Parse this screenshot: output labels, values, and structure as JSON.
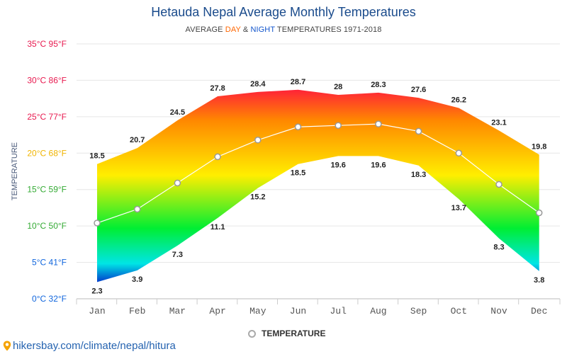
{
  "chart_data": {
    "type": "area",
    "title": "Hetauda Nepal Average Monthly Temperatures",
    "subtitle": {
      "prefix": "AVERAGE ",
      "day": "DAY",
      "amp": " & ",
      "night": "NIGHT",
      "suffix": " TEMPERATURES 1971-2018"
    },
    "ylabel": "TEMPERATURE",
    "categories": [
      "Jan",
      "Feb",
      "Mar",
      "Apr",
      "May",
      "Jun",
      "Jul",
      "Aug",
      "Sep",
      "Oct",
      "Nov",
      "Dec"
    ],
    "ylim": [
      0,
      35
    ],
    "y_ticks": [
      {
        "value": 35,
        "label": "35°C 95°F"
      },
      {
        "value": 30,
        "label": "30°C 86°F"
      },
      {
        "value": 25,
        "label": "25°C 77°F"
      },
      {
        "value": 20,
        "label": "20°C 68°F"
      },
      {
        "value": 15,
        "label": "15°C 59°F"
      },
      {
        "value": 10,
        "label": "10°C 50°F"
      },
      {
        "value": 5,
        "label": "5°C 41°F"
      },
      {
        "value": 0,
        "label": "0°C 32°F"
      }
    ],
    "day_high": [
      18.5,
      20.7,
      24.5,
      27.8,
      28.4,
      28.7,
      28,
      28.3,
      27.6,
      26.2,
      23.1,
      19.8
    ],
    "night_low": [
      2.3,
      3.9,
      7.3,
      11.1,
      15.2,
      18.5,
      19.6,
      19.6,
      18.3,
      13.7,
      8.3,
      3.8
    ],
    "series": [
      {
        "name": "TEMPERATURE",
        "values": [
          10.4,
          12.3,
          15.9,
          19.5,
          21.8,
          23.6,
          23.8,
          24.0,
          23.0,
          20.0,
          15.7,
          11.8
        ]
      }
    ],
    "grid": true,
    "legend_position": "bottom-center",
    "colors": {
      "tick_hot": "#e8194f",
      "tick_warm": "#f0b400",
      "tick_mild": "#33aa33",
      "tick_cold": "#1166dd",
      "gradient_top": "#ff1a3c",
      "gradient_orange": "#ff8800",
      "gradient_yellow": "#ffee00",
      "gradient_green": "#00ee33",
      "gradient_cyan": "#00e5e5",
      "gradient_blue": "#0033cc",
      "line": "#ffffff",
      "marker_stroke": "#999999"
    }
  },
  "footer": {
    "url": "hikersbay.com/climate/nepal/hitura",
    "icon": "location-pin-icon"
  }
}
